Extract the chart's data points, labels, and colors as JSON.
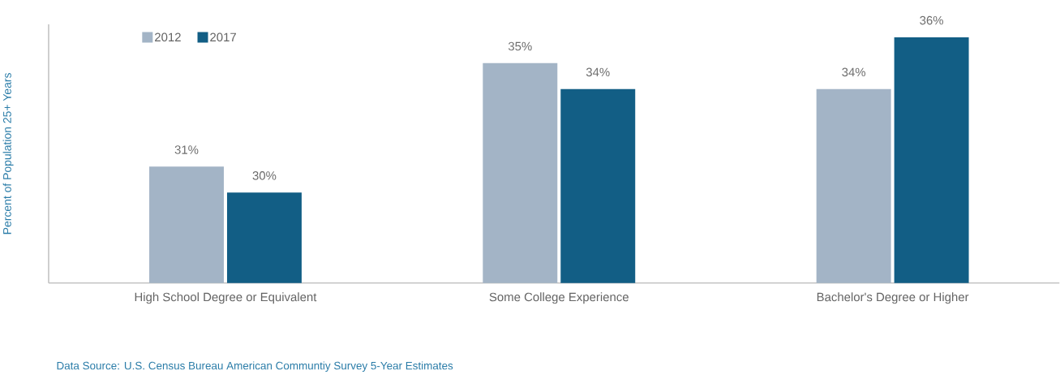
{
  "chart_data": {
    "type": "bar",
    "ylabel": "Percent of Population 25+ Years",
    "categories": [
      "High School Degree or Equivalent",
      "Some College Experience",
      "Bachelor's Degree or Higher"
    ],
    "series": [
      {
        "name": "2012",
        "color": "#a3b4c6",
        "values": [
          31,
          35,
          34
        ],
        "value_labels": [
          "31%",
          "35%",
          "34%"
        ]
      },
      {
        "name": "2017",
        "color": "#125e85",
        "values": [
          30,
          34,
          36
        ],
        "value_labels": [
          "30%",
          "34%",
          "36%"
        ]
      }
    ],
    "ylim": [
      26.5,
      36.5
    ],
    "tick_labels": "x",
    "grid": false,
    "legend": "top left",
    "annotations": [
      "Data Source: U.S. Census Bureau American Communtiy Survey 5-Year Estimates"
    ]
  }
}
